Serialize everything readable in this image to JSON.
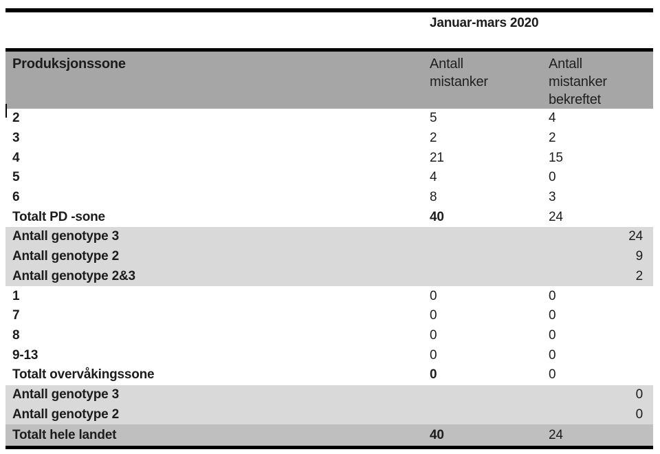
{
  "table": {
    "period_title": "Januar-mars 2020",
    "header": {
      "col1": "Produksjonssone",
      "col2": "Antall\nmistanker",
      "col3": "Antall\nmistanker\nbekreftet"
    },
    "rows": [
      {
        "label": "2",
        "antall": "5",
        "bekreftet": "4"
      },
      {
        "label": "3",
        "antall": "2",
        "bekreftet": "2"
      },
      {
        "label": "4",
        "antall": "21",
        "bekreftet": "15"
      },
      {
        "label": "5",
        "antall": "4",
        "bekreftet": "0"
      },
      {
        "label": "6",
        "antall": "8",
        "bekreftet": "3"
      },
      {
        "label": "Totalt PD -sone",
        "antall": "40",
        "bekreftet": "24"
      },
      {
        "label": "Antall genotype 3",
        "value": "24"
      },
      {
        "label": "Antall genotype 2",
        "value": "9"
      },
      {
        "label": "Antall genotype 2&3",
        "value": "2"
      },
      {
        "label": "1",
        "antall": "0",
        "bekreftet": "0"
      },
      {
        "label": "7",
        "antall": "0",
        "bekreftet": "0"
      },
      {
        "label": "8",
        "antall": "0",
        "bekreftet": "0"
      },
      {
        "label": "9-13",
        "antall": "0",
        "bekreftet": "0"
      },
      {
        "label": "Totalt overvåkingssone",
        "antall": "0",
        "bekreftet": "0"
      },
      {
        "label": "Antall genotype 3",
        "value": "0"
      },
      {
        "label": "Antall genotype 2",
        "value": "0"
      },
      {
        "label": "Totalt hele landet",
        "antall": "40",
        "bekreftet": "24"
      }
    ],
    "colors": {
      "header_bg": "#a6a6a6",
      "genotype_bg": "#d9d9d9",
      "grand_total_bg": "#bfbfbf",
      "border": "#000000"
    }
  }
}
